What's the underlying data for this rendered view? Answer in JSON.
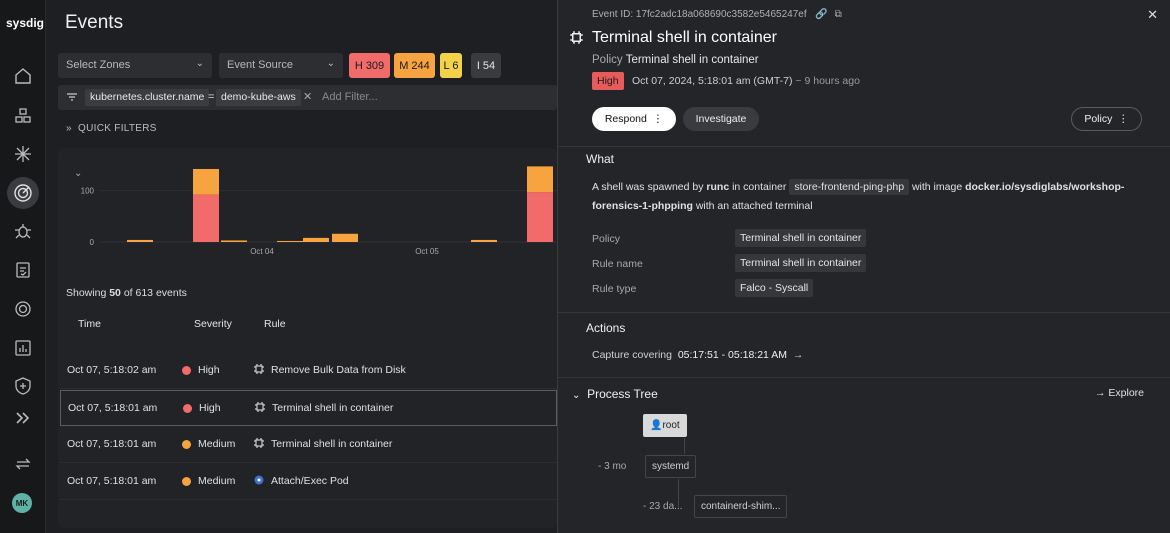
{
  "app": {
    "logo": "sysdig"
  },
  "nav": {
    "avatar_initials": "MK",
    "icons": [
      "home-icon",
      "integrations-icon",
      "network-icon",
      "events-icon",
      "vulnerability-icon",
      "compliance-icon",
      "posture-icon",
      "dashboard-icon",
      "shield-icon",
      "expand-icon",
      "switch-icon"
    ]
  },
  "main": {
    "title": "Events",
    "zones_placeholder": "Select Zones",
    "source_placeholder": "Event Source",
    "severity_counts": [
      {
        "label": "H 309",
        "color": "#f26b6b"
      },
      {
        "label": "M 244",
        "color": "#f7a440"
      },
      {
        "label": "L 6",
        "color": "#f3d24a"
      },
      {
        "label": "I 54",
        "color": "#3a3b3f"
      }
    ],
    "filter": {
      "key": "kubernetes.cluster.name",
      "op": "=",
      "value": "demo-kube-aws",
      "add_placeholder": "Add Filter..."
    },
    "quick_filters": "QUICK FILTERS",
    "showing_prefix": "Showing",
    "showing_count": "50",
    "showing_mid": "of",
    "showing_total": "613",
    "showing_suffix": "events",
    "columns": {
      "time": "Time",
      "severity": "Severity",
      "rule": "Rule"
    },
    "rows": [
      {
        "time": "Oct 07, 5:18:02 am",
        "severity": "High",
        "sev_color": "#f26b6b",
        "rule": "Remove Bulk Data from Disk"
      },
      {
        "time": "Oct 07, 5:18:01 am",
        "severity": "High",
        "sev_color": "#f26b6b",
        "rule": "Terminal shell in container"
      },
      {
        "time": "Oct 07, 5:18:01 am",
        "severity": "Medium",
        "sev_color": "#f7a440",
        "rule": "Terminal shell in container"
      },
      {
        "time": "Oct 07, 5:18:01 am",
        "severity": "Medium",
        "sev_color": "#f7a440",
        "rule": "Attach/Exec Pod"
      }
    ]
  },
  "chart_data": {
    "type": "bar",
    "title": "",
    "xlabel": "",
    "ylabel": "",
    "ylim": [
      0,
      140
    ],
    "yticks": [
      0,
      100
    ],
    "x_ticks": [
      "Oct 04",
      "Oct 05"
    ],
    "series": [
      {
        "name": "High",
        "color": "#f26b6b",
        "values": [
          0,
          92,
          0,
          0,
          0,
          0,
          0,
          97
        ]
      },
      {
        "name": "Medium",
        "color": "#f7a440",
        "values": [
          4,
          50,
          3,
          2,
          8,
          16,
          4,
          50
        ]
      }
    ]
  },
  "panel": {
    "event_id": "Event ID: 17fc2adc18a068690c3582e5465247ef",
    "title": "Terminal shell in container",
    "policy_label": "Policy",
    "policy_value": "Terminal shell in container",
    "severity": "High",
    "timestamp": "Oct 07, 2024, 5:18:01 am (GMT-7)",
    "relative": "~ 9 hours ago",
    "respond": "Respond",
    "investigate": "Investigate",
    "policy_btn": "Policy",
    "what_title": "What",
    "what": {
      "t1": "A shell was spawned by",
      "b1": "runc",
      "t2": "in container",
      "c1": "store-frontend-ping-php",
      "t3": "with image",
      "b2": "docker.io/sysdiglabs/workshop-forensics-1-phpping",
      "t4": "with an attached terminal"
    },
    "fields": [
      {
        "k": "Policy",
        "v": "Terminal shell in container"
      },
      {
        "k": "Rule name",
        "v": "Terminal shell in container"
      },
      {
        "k": "Rule type",
        "v": "Falco - Syscall"
      }
    ],
    "actions_title": "Actions",
    "capture_label": "Capture covering",
    "capture_range": "05:17:51 - 05:18:21 AM",
    "tree_title": "Process Tree",
    "explore": "Explore",
    "tree": [
      {
        "age": "",
        "name": "root"
      },
      {
        "age": "- 3 mo",
        "name": "systemd"
      },
      {
        "age": "- 23 da...",
        "name": "containerd-shim..."
      }
    ]
  }
}
